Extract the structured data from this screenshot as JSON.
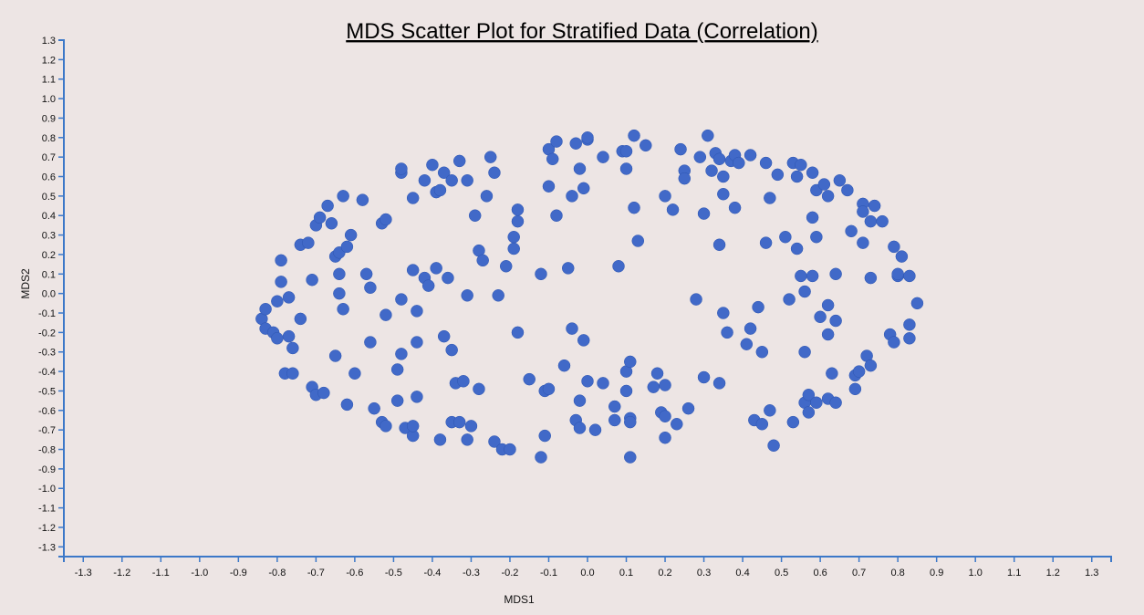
{
  "chart_data": {
    "type": "scatter",
    "title": "MDS Scatter Plot for Stratified Data (Correlation)",
    "xlabel": "MDS1",
    "ylabel": "MDS2",
    "xlim": [
      -1.35,
      1.35
    ],
    "ylim": [
      -1.35,
      1.3
    ],
    "xticks": [
      "-1.3",
      "-1.2",
      "-1.1",
      "-1.0",
      "-0.9",
      "-0.8",
      "-0.7",
      "-0.6",
      "-0.5",
      "-0.4",
      "-0.3",
      "-0.2",
      "-0.1",
      "0.0",
      "0.1",
      "0.2",
      "0.3",
      "0.4",
      "0.5",
      "0.6",
      "0.7",
      "0.8",
      "0.9",
      "1.0",
      "1.1",
      "1.2",
      "1.3"
    ],
    "yticks": [
      "1.3",
      "1.2",
      "1.1",
      "1.0",
      "0.9",
      "0.8",
      "0.7",
      "0.6",
      "0.5",
      "0.4",
      "0.3",
      "0.2",
      "0.1",
      "0.0",
      "-0.1",
      "-0.2",
      "-0.3",
      "-0.4",
      "-0.5",
      "-0.6",
      "-0.7",
      "-0.8",
      "-0.9",
      "-1.0",
      "-1.1",
      "-1.2",
      "-1.3"
    ],
    "grid": false,
    "point_color": "#4169c8",
    "axis_color": "#3c78c8",
    "points": [
      [
        -0.84,
        -0.13
      ],
      [
        -0.83,
        -0.08
      ],
      [
        -0.83,
        -0.18
      ],
      [
        -0.81,
        -0.2
      ],
      [
        -0.8,
        -0.23
      ],
      [
        -0.8,
        -0.04
      ],
      [
        -0.79,
        0.06
      ],
      [
        -0.79,
        0.17
      ],
      [
        -0.78,
        -0.41
      ],
      [
        -0.77,
        -0.22
      ],
      [
        -0.77,
        -0.02
      ],
      [
        -0.76,
        -0.28
      ],
      [
        -0.76,
        -0.41
      ],
      [
        -0.74,
        0.25
      ],
      [
        -0.74,
        -0.13
      ],
      [
        -0.72,
        0.26
      ],
      [
        -0.71,
        -0.48
      ],
      [
        -0.71,
        0.07
      ],
      [
        -0.7,
        -0.52
      ],
      [
        -0.7,
        0.35
      ],
      [
        -0.69,
        0.39
      ],
      [
        -0.68,
        -0.51
      ],
      [
        -0.67,
        0.45
      ],
      [
        -0.66,
        0.36
      ],
      [
        -0.65,
        0.19
      ],
      [
        -0.65,
        -0.32
      ],
      [
        -0.64,
        0.1
      ],
      [
        -0.64,
        0.0
      ],
      [
        -0.64,
        0.21
      ],
      [
        -0.63,
        -0.08
      ],
      [
        -0.63,
        0.5
      ],
      [
        -0.62,
        0.24
      ],
      [
        -0.62,
        -0.57
      ],
      [
        -0.61,
        0.3
      ],
      [
        -0.6,
        -0.41
      ],
      [
        -0.58,
        0.48
      ],
      [
        -0.57,
        0.1
      ],
      [
        -0.56,
        0.03
      ],
      [
        -0.56,
        -0.25
      ],
      [
        -0.55,
        -0.59
      ],
      [
        -0.53,
        -0.66
      ],
      [
        -0.53,
        0.36
      ],
      [
        -0.52,
        -0.11
      ],
      [
        -0.52,
        0.38
      ],
      [
        -0.52,
        -0.68
      ],
      [
        -0.49,
        -0.39
      ],
      [
        -0.49,
        -0.55
      ],
      [
        -0.48,
        0.62
      ],
      [
        -0.48,
        0.64
      ],
      [
        -0.48,
        -0.31
      ],
      [
        -0.48,
        -0.03
      ],
      [
        -0.47,
        -0.69
      ],
      [
        -0.45,
        0.49
      ],
      [
        -0.45,
        0.12
      ],
      [
        -0.45,
        -0.73
      ],
      [
        -0.45,
        -0.68
      ],
      [
        -0.44,
        -0.09
      ],
      [
        -0.44,
        -0.53
      ],
      [
        -0.44,
        -0.25
      ],
      [
        -0.42,
        0.58
      ],
      [
        -0.42,
        0.08
      ],
      [
        -0.41,
        0.04
      ],
      [
        -0.4,
        0.66
      ],
      [
        -0.39,
        0.52
      ],
      [
        -0.39,
        0.13
      ],
      [
        -0.38,
        0.53
      ],
      [
        -0.38,
        -0.75
      ],
      [
        -0.37,
        0.62
      ],
      [
        -0.37,
        -0.22
      ],
      [
        -0.36,
        0.08
      ],
      [
        -0.35,
        -0.29
      ],
      [
        -0.35,
        0.58
      ],
      [
        -0.35,
        -0.66
      ],
      [
        -0.34,
        -0.46
      ],
      [
        -0.33,
        0.68
      ],
      [
        -0.33,
        -0.66
      ],
      [
        -0.32,
        -0.45
      ],
      [
        -0.31,
        0.58
      ],
      [
        -0.31,
        -0.01
      ],
      [
        -0.31,
        -0.75
      ],
      [
        -0.3,
        -0.68
      ],
      [
        -0.29,
        0.4
      ],
      [
        -0.28,
        0.22
      ],
      [
        -0.28,
        -0.49
      ],
      [
        -0.27,
        0.17
      ],
      [
        -0.26,
        0.5
      ],
      [
        -0.25,
        0.7
      ],
      [
        -0.24,
        0.62
      ],
      [
        -0.24,
        -0.76
      ],
      [
        -0.23,
        -0.01
      ],
      [
        -0.22,
        -0.8
      ],
      [
        -0.21,
        0.14
      ],
      [
        -0.2,
        -0.8
      ],
      [
        -0.19,
        0.29
      ],
      [
        -0.19,
        0.23
      ],
      [
        -0.18,
        0.37
      ],
      [
        -0.18,
        0.43
      ],
      [
        -0.18,
        -0.2
      ],
      [
        -0.15,
        -0.44
      ],
      [
        -0.12,
        0.1
      ],
      [
        -0.12,
        -0.84
      ],
      [
        -0.11,
        -0.5
      ],
      [
        -0.11,
        -0.73
      ],
      [
        -0.1,
        0.55
      ],
      [
        -0.1,
        -0.49
      ],
      [
        -0.1,
        0.74
      ],
      [
        -0.09,
        0.69
      ],
      [
        -0.08,
        0.78
      ],
      [
        -0.08,
        0.4
      ],
      [
        -0.06,
        -0.37
      ],
      [
        -0.05,
        0.13
      ],
      [
        -0.04,
        -0.18
      ],
      [
        -0.04,
        0.5
      ],
      [
        -0.03,
        0.77
      ],
      [
        -0.03,
        -0.65
      ],
      [
        -0.02,
        0.64
      ],
      [
        -0.02,
        -0.69
      ],
      [
        -0.02,
        -0.55
      ],
      [
        -0.01,
        0.54
      ],
      [
        -0.01,
        -0.24
      ],
      [
        0.0,
        -0.45
      ],
      [
        0.0,
        0.79
      ],
      [
        0.0,
        0.8
      ],
      [
        0.02,
        -0.7
      ],
      [
        0.04,
        0.7
      ],
      [
        0.04,
        -0.46
      ],
      [
        0.07,
        -0.65
      ],
      [
        0.07,
        -0.58
      ],
      [
        0.08,
        0.14
      ],
      [
        0.09,
        0.73
      ],
      [
        0.1,
        0.64
      ],
      [
        0.1,
        -0.4
      ],
      [
        0.1,
        -0.5
      ],
      [
        0.1,
        0.73
      ],
      [
        0.11,
        -0.35
      ],
      [
        0.11,
        -0.64
      ],
      [
        0.11,
        -0.66
      ],
      [
        0.11,
        -0.84
      ],
      [
        0.12,
        0.81
      ],
      [
        0.12,
        0.44
      ],
      [
        0.13,
        0.27
      ],
      [
        0.15,
        0.76
      ],
      [
        0.17,
        -0.48
      ],
      [
        0.18,
        -0.41
      ],
      [
        0.19,
        -0.61
      ],
      [
        0.2,
        -0.47
      ],
      [
        0.2,
        -0.63
      ],
      [
        0.2,
        0.5
      ],
      [
        0.2,
        -0.74
      ],
      [
        0.22,
        0.43
      ],
      [
        0.23,
        -0.67
      ],
      [
        0.24,
        0.74
      ],
      [
        0.25,
        0.63
      ],
      [
        0.25,
        0.59
      ],
      [
        0.26,
        -0.59
      ],
      [
        0.28,
        -0.03
      ],
      [
        0.29,
        0.7
      ],
      [
        0.3,
        0.41
      ],
      [
        0.3,
        -0.43
      ],
      [
        0.31,
        0.81
      ],
      [
        0.32,
        0.63
      ],
      [
        0.33,
        0.72
      ],
      [
        0.34,
        0.25
      ],
      [
        0.34,
        -0.46
      ],
      [
        0.34,
        0.69
      ],
      [
        0.35,
        0.6
      ],
      [
        0.35,
        -0.1
      ],
      [
        0.35,
        0.51
      ],
      [
        0.36,
        -0.2
      ],
      [
        0.37,
        0.68
      ],
      [
        0.38,
        0.71
      ],
      [
        0.38,
        0.44
      ],
      [
        0.39,
        0.67
      ],
      [
        0.41,
        -0.26
      ],
      [
        0.42,
        0.71
      ],
      [
        0.42,
        -0.18
      ],
      [
        0.43,
        -0.65
      ],
      [
        0.44,
        -0.07
      ],
      [
        0.45,
        -0.67
      ],
      [
        0.45,
        -0.3
      ],
      [
        0.46,
        0.26
      ],
      [
        0.46,
        0.67
      ],
      [
        0.47,
        0.49
      ],
      [
        0.47,
        -0.6
      ],
      [
        0.48,
        -0.78
      ],
      [
        0.49,
        0.61
      ],
      [
        0.51,
        0.29
      ],
      [
        0.52,
        -0.03
      ],
      [
        0.53,
        0.67
      ],
      [
        0.53,
        -0.66
      ],
      [
        0.54,
        0.6
      ],
      [
        0.54,
        0.23
      ],
      [
        0.55,
        0.66
      ],
      [
        0.55,
        0.09
      ],
      [
        0.56,
        0.01
      ],
      [
        0.56,
        -0.3
      ],
      [
        0.56,
        -0.56
      ],
      [
        0.57,
        -0.61
      ],
      [
        0.57,
        -0.52
      ],
      [
        0.58,
        0.62
      ],
      [
        0.58,
        0.39
      ],
      [
        0.58,
        0.09
      ],
      [
        0.59,
        0.53
      ],
      [
        0.59,
        0.29
      ],
      [
        0.59,
        -0.56
      ],
      [
        0.6,
        -0.12
      ],
      [
        0.61,
        0.56
      ],
      [
        0.62,
        0.5
      ],
      [
        0.62,
        -0.54
      ],
      [
        0.62,
        -0.21
      ],
      [
        0.62,
        -0.06
      ],
      [
        0.63,
        -0.41
      ],
      [
        0.64,
        -0.56
      ],
      [
        0.64,
        -0.14
      ],
      [
        0.64,
        0.1
      ],
      [
        0.65,
        0.58
      ],
      [
        0.67,
        0.53
      ],
      [
        0.68,
        0.32
      ],
      [
        0.69,
        -0.42
      ],
      [
        0.69,
        -0.49
      ],
      [
        0.7,
        -0.4
      ],
      [
        0.71,
        0.46
      ],
      [
        0.71,
        0.42
      ],
      [
        0.71,
        0.26
      ],
      [
        0.72,
        -0.32
      ],
      [
        0.73,
        -0.37
      ],
      [
        0.73,
        0.08
      ],
      [
        0.73,
        0.37
      ],
      [
        0.74,
        0.45
      ],
      [
        0.76,
        0.37
      ],
      [
        0.78,
        -0.21
      ],
      [
        0.79,
        0.24
      ],
      [
        0.79,
        -0.25
      ],
      [
        0.8,
        0.09
      ],
      [
        0.8,
        0.1
      ],
      [
        0.81,
        0.19
      ],
      [
        0.83,
        0.09
      ],
      [
        0.83,
        -0.16
      ],
      [
        0.83,
        -0.23
      ],
      [
        0.85,
        -0.05
      ]
    ]
  }
}
